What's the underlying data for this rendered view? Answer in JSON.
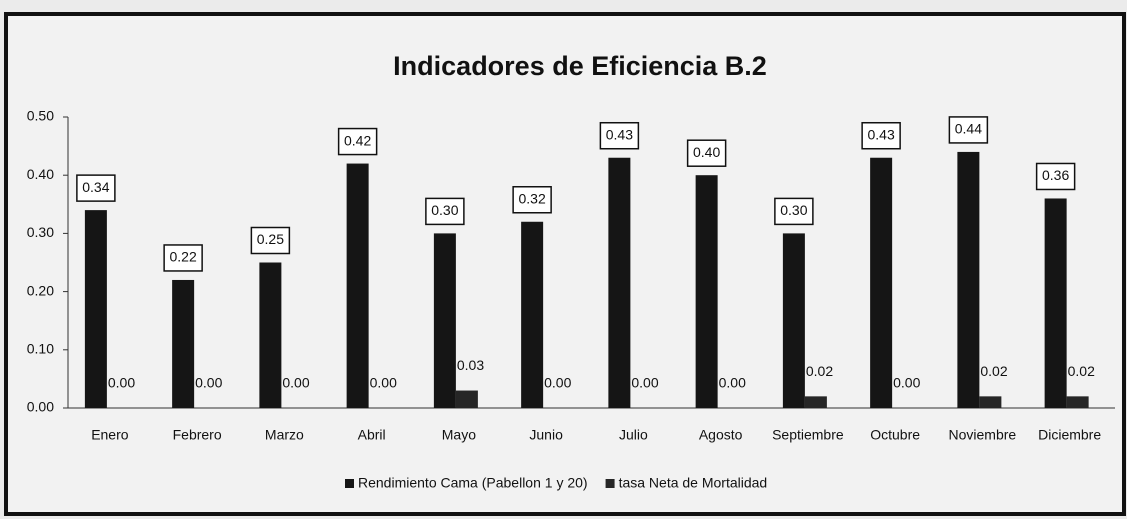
{
  "chart_data": {
    "type": "bar",
    "title": "Indicadores de Eficiencia B.2",
    "categories": [
      "Enero",
      "Febrero",
      "Marzo",
      "Abril",
      "Mayo",
      "Junio",
      "Julio",
      "Agosto",
      "Septiembre",
      "Octubre",
      "Noviembre",
      "Diciembre"
    ],
    "series": [
      {
        "name": "Rendimiento Cama (Pabellon 1 y 20)",
        "color": "#151515",
        "values": [
          0.34,
          0.22,
          0.25,
          0.42,
          0.3,
          0.32,
          0.43,
          0.4,
          0.3,
          0.43,
          0.44,
          0.36
        ],
        "value_labels": [
          "0.34",
          "0.22",
          "0.25",
          "0.42",
          "0.30",
          "0.32",
          "0.43",
          "0.40",
          "0.30",
          "0.43",
          "0.44",
          "0.36"
        ]
      },
      {
        "name": "tasa Neta de Mortalidad",
        "color": "#262626",
        "values": [
          0,
          0,
          0,
          0,
          0.03,
          0,
          0,
          0,
          0.02,
          0,
          0.02,
          0.02
        ],
        "value_labels": [
          "0.00",
          "0.00",
          "0.00",
          "0.00",
          "0.03",
          "0.00",
          "0.00",
          "0.00",
          "0.02",
          "0.00",
          "0.02",
          "0.02"
        ]
      }
    ],
    "ylim": [
      0,
      0.5
    ],
    "yticks": [
      {
        "value": 0,
        "label": "0.00"
      },
      {
        "value": 0.1,
        "label": "0.10"
      },
      {
        "value": 0.2,
        "label": "0.20"
      },
      {
        "value": 0.3,
        "label": "0.30"
      },
      {
        "value": 0.4,
        "label": "0.40"
      },
      {
        "value": 0.5,
        "label": "0.50"
      }
    ],
    "legend": "bottom"
  }
}
